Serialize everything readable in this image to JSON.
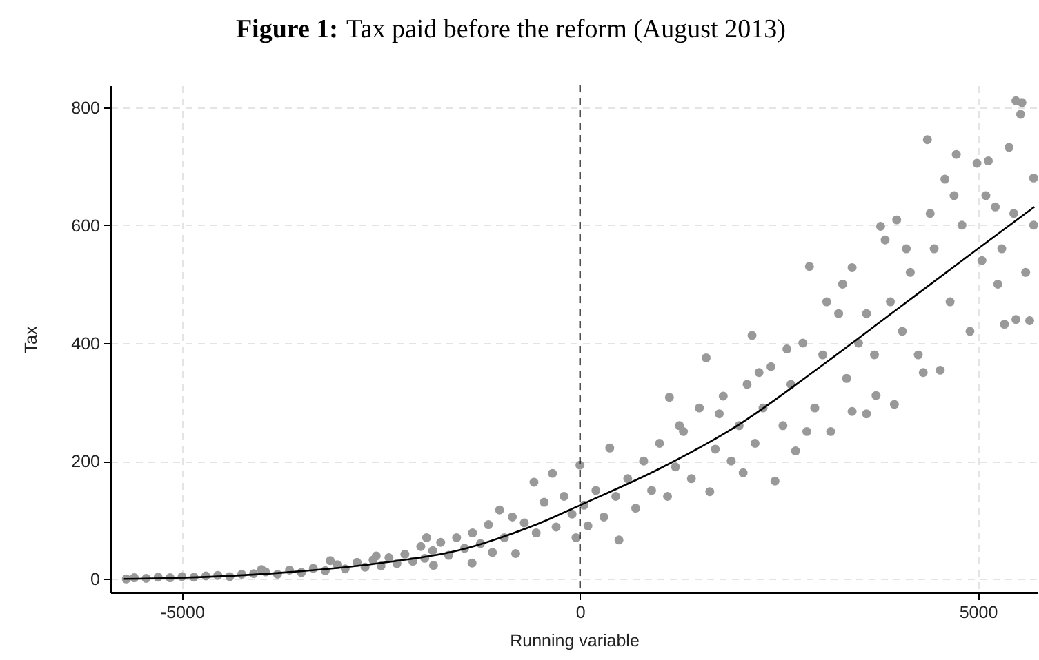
{
  "chart_data": {
    "type": "scatter",
    "title": "Figure 1: Tax paid before the reform (August 2013)",
    "xlabel": "Running variable",
    "ylabel": "Tax",
    "xlim": [
      -5900,
      5750
    ],
    "ylim": [
      -23,
      837
    ],
    "xticks": [
      -5000,
      0,
      5000
    ],
    "yticks": [
      0,
      200,
      400,
      600,
      800
    ],
    "grid": true,
    "marker": "circle",
    "ref_lines": [
      {
        "axis": "x",
        "value": 0,
        "color": "#000000",
        "line_style": "dashed"
      }
    ],
    "series": [
      {
        "color": "#999999",
        "x": [
          -5700,
          -5600,
          -5450,
          -5300,
          -5150,
          -5000,
          -4850,
          -4700,
          -4550,
          -4400,
          -4250,
          -4100,
          -4002,
          -3950,
          -3800,
          -3650,
          -3500,
          -3350,
          -3200,
          -3137,
          -3050,
          -2950,
          -2800,
          -2700,
          -2600,
          -2560,
          -2500,
          -2400,
          -2300,
          -2200,
          -2100,
          -2000,
          -1950,
          -1927,
          -1850,
          -1840,
          -1750,
          -1650,
          -1550,
          -1450,
          -1356,
          -1350,
          -1250,
          -1150,
          -1100,
          -1010,
          -950,
          -850,
          -808,
          -700,
          -578,
          -550,
          -450,
          -346,
          -300,
          -200,
          -100,
          -50,
          0,
          50,
          100,
          200,
          300,
          374,
          450,
          490,
          600,
          700,
          800,
          900,
          1000,
          1100,
          1124,
          1200,
          1300,
          1400,
          1500,
          1585,
          1631,
          1700,
          1800,
          1900,
          2000,
          2100,
          2162,
          2200,
          2300,
          2400,
          2450,
          2550,
          2650,
          2709,
          2800,
          2883,
          2950,
          3050,
          3150,
          3250,
          3350,
          3419,
          3419,
          3500,
          3600,
          3720,
          3777,
          3834,
          3900,
          3950,
          3979,
          4050,
          4150,
          4250,
          4313,
          4365,
          4450,
          4526,
          4585,
          4650,
          4728,
          4800,
          4900,
          4988,
          5050,
          5131,
          5218,
          5300,
          5333,
          5391,
          5450,
          5477,
          5477,
          5536,
          5553,
          5600,
          5650,
          5700,
          5700,
          1250,
          1750,
          2250,
          2600,
          3100,
          3300,
          3600,
          4100,
          4400,
          4700,
          5100,
          5250,
          2050,
          2850,
          3700
        ],
        "values": [
          0,
          2,
          1,
          3,
          2,
          4,
          3,
          5,
          6,
          4,
          8,
          9,
          16,
          12,
          8,
          15,
          11,
          18,
          14,
          31,
          24,
          17,
          28,
          20,
          32,
          39,
          22,
          36,
          26,
          42,
          30,
          55,
          35,
          70,
          48,
          23,
          62,
          40,
          70,
          52,
          27,
          78,
          60,
          92,
          45,
          117,
          70,
          105,
          43,
          95,
          164,
          78,
          130,
          179,
          88,
          140,
          110,
          70,
          193,
          125,
          90,
          150,
          105,
          222,
          140,
          66,
          170,
          120,
          200,
          150,
          230,
          140,
          308,
          190,
          250,
          170,
          290,
          375,
          148,
          220,
          310,
          200,
          260,
          330,
          413,
          230,
          290,
          360,
          166,
          260,
          330,
          217,
          400,
          530,
          290,
          380,
          250,
          450,
          340,
          528,
          284,
          400,
          280,
          311,
          598,
          575,
          470,
          296,
          609,
          420,
          520,
          380,
          350,
          745,
          560,
          354,
          678,
          470,
          720,
          600,
          420,
          705,
          540,
          709,
          631,
          560,
          432,
          732,
          620,
          811,
          440,
          788,
          808,
          520,
          438,
          680,
          600,
          260,
          280,
          350,
          390,
          470,
          500,
          450,
          560,
          620,
          650,
          650,
          500,
          180,
          250,
          380
        ]
      },
      {
        "type": "line",
        "color": "#000000",
        "line_style": "solid",
        "marker": "none",
        "x": [
          -5730,
          -4600,
          -3700,
          -2560,
          -1400,
          -1000,
          -500,
          0,
          1000,
          2000,
          3000,
          4000,
          5000,
          5709
        ],
        "values": [
          0,
          4,
          11,
          26,
          53,
          70,
          95,
          125,
          187,
          262,
          358,
          459,
          560,
          631
        ]
      }
    ]
  }
}
